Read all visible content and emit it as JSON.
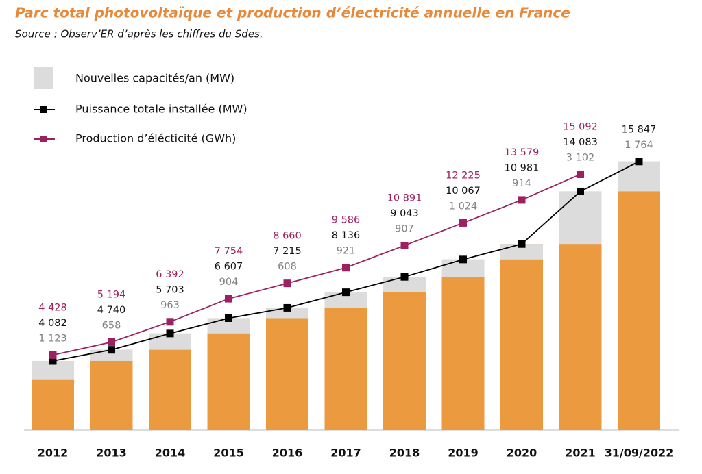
{
  "chart_data": {
    "type": "bar-line",
    "title": "Parc total photovoltaïque et production d’électricité annuelle en France",
    "subtitle": "Source : Observ’ER d’après les chiffres du Sdes.",
    "categories": [
      "2012",
      "2013",
      "2014",
      "2015",
      "2016",
      "2017",
      "2018",
      "2019",
      "2020",
      "2021",
      "31/09/2022"
    ],
    "bar_color": "#eb9a3f",
    "ylim": [
      0,
      16000
    ],
    "series": [
      {
        "name": "Nouvelles capacités/an (MW)",
        "color": "#dcdcdc",
        "values": [
          1123,
          658,
          963,
          904,
          608,
          921,
          907,
          1024,
          914,
          3102,
          1764
        ],
        "value_labels": [
          "1 123",
          "658",
          "963",
          "904",
          "608",
          "921",
          "907",
          "1 024",
          "914",
          "3 102",
          "1 764"
        ]
      },
      {
        "name": "Puissance totale installée (MW)",
        "color": "#000000",
        "values": [
          4082,
          4740,
          5703,
          6607,
          7215,
          8136,
          9043,
          10067,
          10981,
          14083,
          15847
        ],
        "value_labels": [
          "4 082",
          "4 740",
          "5 703",
          "6 607",
          "7 215",
          "8 136",
          "9 043",
          "10 067",
          "10 981",
          "14 083",
          "15 847"
        ]
      },
      {
        "name": "Production d’élécticité (GWh)",
        "color": "#9b2160",
        "values": [
          4428,
          5194,
          6392,
          7754,
          8660,
          9586,
          10891,
          12225,
          13579,
          15092,
          null
        ],
        "value_labels": [
          "4 428",
          "5 194",
          "6 392",
          "7 754",
          "8 660",
          "9 586",
          "10 891",
          "12 225",
          "13 579",
          "15 092",
          null
        ]
      }
    ]
  }
}
